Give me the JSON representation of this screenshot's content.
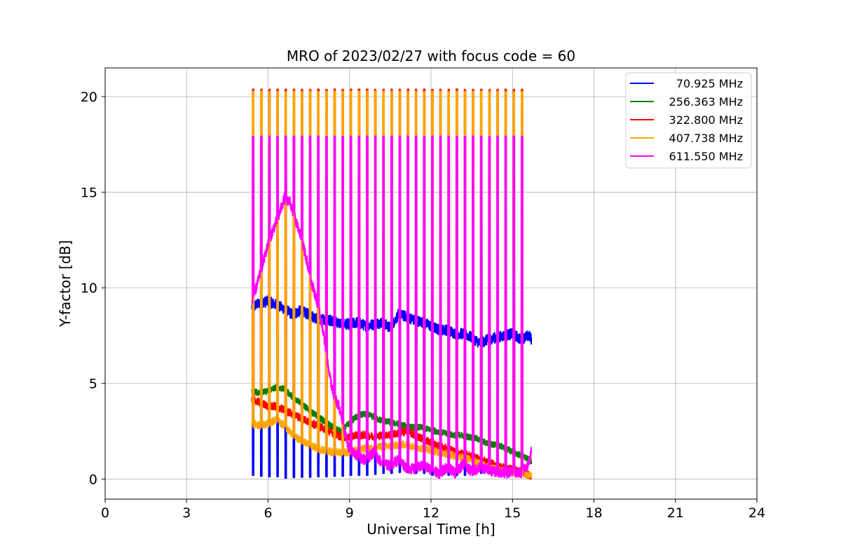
{
  "chart_data": {
    "type": "line",
    "title": "MRO of 2023/02/27 with focus code = 60",
    "xlabel": "Universal Time [h]",
    "ylabel": "Y-factor [dB]",
    "xlim": [
      0,
      24
    ],
    "ylim": [
      -1.05,
      21.5
    ],
    "xticks": [
      0,
      3,
      6,
      9,
      12,
      15,
      18,
      21,
      24
    ],
    "xtick_labels": [
      "0",
      "3",
      "6",
      "9",
      "12",
      "15",
      "18",
      "21",
      "24"
    ],
    "yticks": [
      0,
      5,
      10,
      15,
      20
    ],
    "ytick_labels": [
      "0",
      "5",
      "10",
      "15",
      "20"
    ],
    "grid": true,
    "legend_position": "top-right",
    "calibration": {
      "start": 5.45,
      "end": 15.55,
      "period": 0.3,
      "spike_duration": 0.05
    },
    "series": [
      {
        "name": "70.925 MHz",
        "color": "#0000ff",
        "x": [
          5.4,
          5.7,
          6.0,
          6.3,
          6.6,
          6.9,
          7.2,
          7.5,
          7.8,
          8.1,
          8.4,
          8.7,
          9.0,
          9.3,
          9.6,
          9.9,
          10.2,
          10.5,
          10.8,
          11.1,
          11.4,
          11.7,
          12.0,
          12.3,
          12.6,
          12.9,
          13.2,
          13.5,
          13.8,
          14.1,
          14.4,
          14.7,
          15.0,
          15.3,
          15.6,
          15.7
        ],
        "y": [
          9.0,
          9.2,
          9.3,
          9.1,
          8.9,
          8.6,
          8.8,
          8.6,
          8.4,
          8.3,
          8.3,
          8.1,
          8.1,
          8.2,
          8.0,
          8.1,
          8.2,
          7.9,
          8.6,
          8.5,
          8.3,
          8.2,
          8.0,
          7.8,
          7.8,
          7.6,
          7.6,
          7.4,
          7.1,
          7.3,
          7.4,
          7.5,
          7.6,
          7.3,
          7.5,
          7.3
        ],
        "low_values": [
          0.2,
          0.15,
          0.12,
          0.12,
          0.05,
          0.08,
          0.1,
          0.1,
          0.12,
          0.12,
          0.15,
          0.15,
          0.2,
          0.2,
          0.2,
          0.25,
          0.3,
          0.3,
          0.35,
          0.35,
          0.3,
          0.3,
          0.2,
          0.2,
          0.2,
          0.2,
          0.2,
          0.25,
          0.3,
          0.3,
          0.3,
          0.3,
          0.3,
          0.3
        ],
        "peak": null,
        "noise": 0.28
      },
      {
        "name": "256.363 MHz",
        "color": "#008000",
        "x": [
          5.4,
          5.7,
          6.0,
          6.3,
          6.6,
          6.9,
          7.2,
          7.5,
          7.8,
          8.1,
          8.4,
          8.7,
          8.9,
          9.2,
          9.5,
          9.8,
          10.1,
          10.4,
          10.7,
          11.0,
          11.3,
          11.6,
          11.9,
          12.2,
          12.5,
          12.8,
          13.1,
          13.4,
          13.7,
          14.0,
          14.3,
          14.6,
          14.9,
          15.2,
          15.5,
          15.7
        ],
        "y": [
          4.6,
          4.5,
          4.6,
          4.8,
          4.7,
          4.3,
          4.0,
          3.6,
          3.3,
          3.0,
          2.7,
          2.5,
          2.8,
          3.2,
          3.4,
          3.3,
          3.1,
          3.0,
          2.9,
          2.8,
          2.7,
          2.7,
          2.6,
          2.5,
          2.4,
          2.3,
          2.3,
          2.2,
          2.1,
          1.9,
          1.8,
          1.7,
          1.5,
          1.3,
          1.1,
          0.9
        ],
        "low_values": null,
        "peak": null,
        "noise": 0.16
      },
      {
        "name": "322.800 MHz",
        "color": "#ff0000",
        "x": [
          5.4,
          5.7,
          6.0,
          6.3,
          6.6,
          6.9,
          7.2,
          7.5,
          7.8,
          8.1,
          8.4,
          8.7,
          9.0,
          9.3,
          9.6,
          9.9,
          10.2,
          10.5,
          10.8,
          11.1,
          11.4,
          11.7,
          12.0,
          12.3,
          12.6,
          12.9,
          13.2,
          13.5,
          13.8,
          14.1,
          14.4,
          14.7,
          15.0,
          15.3,
          15.6,
          15.7
        ],
        "y": [
          4.2,
          4.0,
          3.8,
          3.8,
          3.6,
          3.4,
          3.2,
          3.0,
          2.8,
          2.6,
          2.4,
          2.2,
          2.2,
          2.3,
          2.3,
          2.2,
          2.3,
          2.3,
          2.4,
          2.5,
          2.3,
          2.1,
          1.9,
          1.7,
          1.6,
          1.4,
          1.3,
          1.2,
          1.0,
          0.9,
          0.7,
          0.6,
          0.5,
          0.4,
          0.2,
          0.1
        ],
        "low_values": null,
        "peak": 20.35,
        "noise": 0.2
      },
      {
        "name": "407.738 MHz",
        "color": "#ffa500",
        "x": [
          5.4,
          5.7,
          6.0,
          6.3,
          6.6,
          6.9,
          7.2,
          7.5,
          7.8,
          8.1,
          8.4,
          8.7,
          9.0,
          9.3,
          9.6,
          9.9,
          10.2,
          10.5,
          10.8,
          11.1,
          11.4,
          11.7,
          12.0,
          12.3,
          12.6,
          12.9,
          13.2,
          13.5,
          13.8,
          14.1,
          14.4,
          14.7,
          15.0,
          15.3,
          15.6,
          15.7
        ],
        "y": [
          2.9,
          2.8,
          2.9,
          3.1,
          2.8,
          2.3,
          2.0,
          1.8,
          1.6,
          1.5,
          1.4,
          1.4,
          1.4,
          1.5,
          1.6,
          1.6,
          1.7,
          1.7,
          1.8,
          1.8,
          1.7,
          1.6,
          1.5,
          1.4,
          1.3,
          1.2,
          1.1,
          1.0,
          0.8,
          0.6,
          0.5,
          0.4,
          0.3,
          0.3,
          0.2,
          0.2
        ],
        "low_values": null,
        "peak": 20.25,
        "noise": 0.2
      },
      {
        "name": "611.550 MHz",
        "color": "#ff00ff",
        "x": [
          5.4,
          5.6,
          5.8,
          6.0,
          6.2,
          6.4,
          6.6,
          6.8,
          7.0,
          7.2,
          7.4,
          7.6,
          7.8,
          8.0,
          8.2,
          8.4,
          8.6,
          8.8,
          9.0,
          9.3,
          9.6,
          9.9,
          10.2,
          10.5,
          10.8,
          11.1,
          11.4,
          11.7,
          12.0,
          12.3,
          12.6,
          12.9,
          13.2,
          13.5,
          13.8,
          14.1,
          14.4,
          14.7,
          15.0,
          15.3,
          15.6,
          15.7
        ],
        "y": [
          9.2,
          10.2,
          11.2,
          12.3,
          13.1,
          13.8,
          14.7,
          14.5,
          13.6,
          12.7,
          11.6,
          10.3,
          9.3,
          8.0,
          6.0,
          4.4,
          3.8,
          2.6,
          1.5,
          1.2,
          1.0,
          1.4,
          0.8,
          0.7,
          1.0,
          0.6,
          0.5,
          0.7,
          0.5,
          0.3,
          0.6,
          0.3,
          0.8,
          0.4,
          0.6,
          0.5,
          0.4,
          0.3,
          0.4,
          0.3,
          0.8,
          1.5
        ],
        "low_values": null,
        "peak": 17.9,
        "noise": 0.28
      }
    ]
  }
}
